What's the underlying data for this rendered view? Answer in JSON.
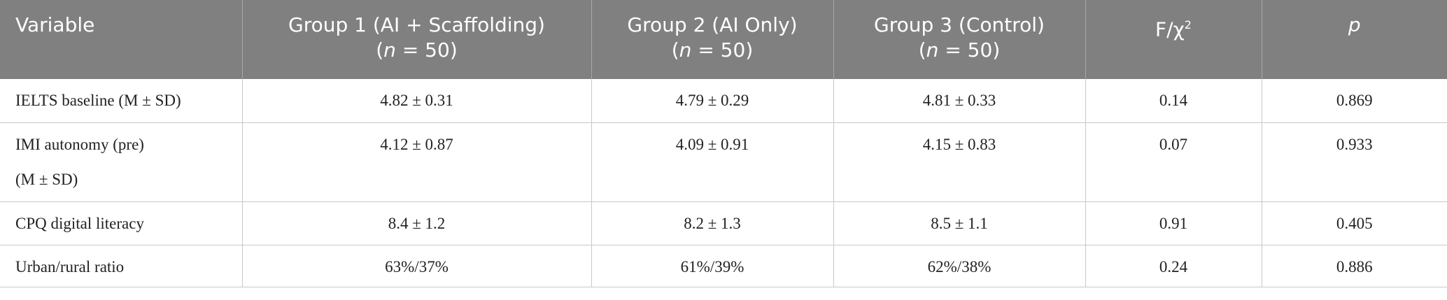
{
  "table": {
    "header": [
      [
        "Variable"
      ],
      [
        "Group 1 (AI + Scaffolding)",
        "(",
        "n",
        " = 50)"
      ],
      [
        "Group 2 (AI Only)",
        "(",
        "n",
        " = 50)"
      ],
      [
        "Group 3 (Control)",
        "(",
        "n",
        " = 50)"
      ],
      [
        "F/χ",
        "2"
      ],
      [
        "p"
      ]
    ],
    "rows": [
      [
        [
          "IELTS baseline (M ± SD)"
        ],
        "4.82 ± 0.31",
        "4.79 ± 0.29",
        "4.81 ± 0.33",
        "0.14",
        "0.869"
      ],
      [
        [
          "IMI autonomy (pre)",
          "(M ± SD)"
        ],
        "4.12 ± 0.87",
        "4.09 ± 0.91",
        "4.15 ± 0.83",
        "0.07",
        "0.933"
      ],
      [
        [
          "CPQ digital literacy"
        ],
        "8.4 ± 1.2",
        "8.2 ± 1.3",
        "8.5 ± 1.1",
        "0.91",
        "0.405"
      ],
      [
        [
          "Urban/rural ratio"
        ],
        "63%/37%",
        "61%/39%",
        "62%/38%",
        "0.24",
        "0.886"
      ]
    ]
  }
}
